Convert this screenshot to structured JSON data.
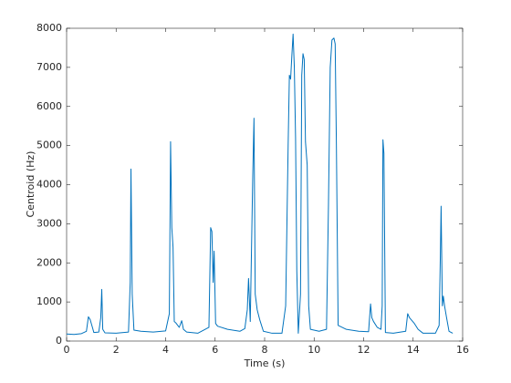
{
  "chart_data": {
    "type": "line",
    "xlabel": "Time (s)",
    "ylabel": "Centroid (Hz)",
    "x": [
      0,
      0.3,
      0.6,
      0.8,
      0.88,
      0.95,
      1.02,
      1.1,
      1.3,
      1.38,
      1.42,
      1.46,
      1.55,
      2.0,
      2.5,
      2.57,
      2.6,
      2.65,
      2.72,
      3.0,
      3.5,
      4.0,
      4.15,
      4.2,
      4.25,
      4.3,
      4.35,
      4.42,
      4.55,
      4.65,
      4.72,
      4.85,
      5.3,
      5.75,
      5.82,
      5.87,
      5.92,
      5.96,
      6.02,
      6.1,
      6.5,
      7.0,
      7.2,
      7.3,
      7.35,
      7.42,
      7.52,
      7.57,
      7.62,
      7.7,
      7.8,
      7.95,
      8.3,
      8.7,
      8.85,
      8.95,
      9.0,
      9.05,
      9.1,
      9.15,
      9.2,
      9.25,
      9.3,
      9.36,
      9.45,
      9.5,
      9.55,
      9.6,
      9.65,
      9.72,
      9.78,
      9.85,
      10.2,
      10.5,
      10.58,
      10.65,
      10.72,
      10.8,
      10.85,
      10.9,
      10.97,
      11.3,
      11.8,
      12.2,
      12.28,
      12.33,
      12.4,
      12.55,
      12.7,
      12.75,
      12.78,
      12.82,
      12.88,
      13.2,
      13.7,
      13.78,
      13.85,
      14.05,
      14.2,
      14.4,
      14.9,
      15.05,
      15.1,
      15.13,
      15.18,
      15.22,
      15.27,
      15.35,
      15.45,
      15.6
    ],
    "series": [
      {
        "color": "#0072bd",
        "values": [
          180,
          170,
          190,
          250,
          620,
          550,
          400,
          220,
          230,
          600,
          1320,
          300,
          210,
          200,
          230,
          1500,
          4400,
          1200,
          280,
          250,
          230,
          260,
          700,
          5100,
          2900,
          2400,
          500,
          460,
          350,
          520,
          300,
          230,
          200,
          350,
          2900,
          2800,
          1500,
          2300,
          450,
          380,
          300,
          250,
          320,
          800,
          1600,
          500,
          4200,
          5700,
          1200,
          800,
          550,
          250,
          200,
          200,
          900,
          5000,
          6800,
          6700,
          7300,
          7850,
          7000,
          5200,
          1800,
          200,
          1200,
          6800,
          7350,
          7200,
          5100,
          4500,
          900,
          300,
          250,
          300,
          3500,
          7000,
          7700,
          7750,
          7600,
          5000,
          400,
          300,
          250,
          240,
          950,
          600,
          500,
          350,
          300,
          900,
          5150,
          4800,
          220,
          200,
          250,
          700,
          600,
          450,
          300,
          200,
          200,
          400,
          2200,
          3450,
          900,
          1150,
          900,
          600,
          250,
          200
        ]
      }
    ],
    "xlim": [
      0,
      16
    ],
    "xticks": [
      0,
      2,
      4,
      6,
      8,
      10,
      12,
      14,
      16
    ],
    "ylim": [
      0,
      8000
    ],
    "yticks": [
      0,
      1000,
      2000,
      3000,
      4000,
      5000,
      6000,
      7000,
      8000
    ],
    "grid": false
  }
}
